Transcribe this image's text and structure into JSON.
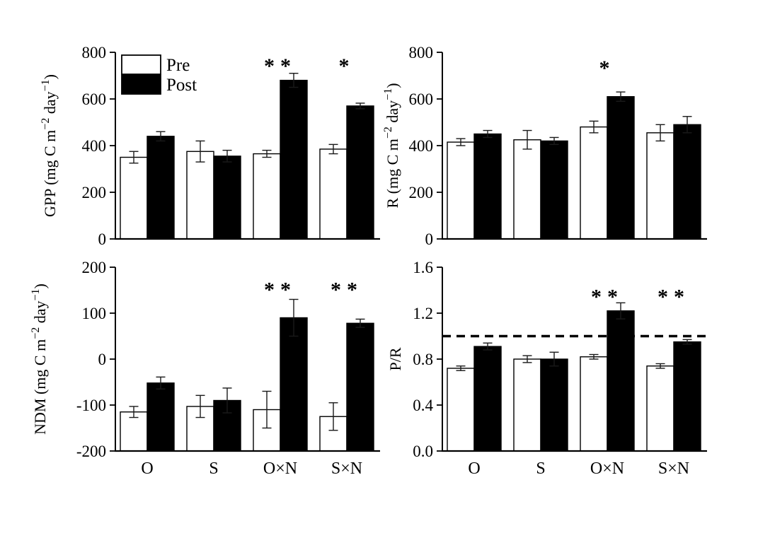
{
  "figure": {
    "background": "#ffffff",
    "bar_outline_color": "#000000",
    "pre_fill": "#ffffff",
    "post_fill": "#000000",
    "error_bar_color": "#1a1a1a",
    "refline_color": "#000000"
  },
  "legend": {
    "items": [
      {
        "label": "Pre",
        "fill": "#ffffff"
      },
      {
        "label": "Post",
        "fill": "#000000"
      }
    ]
  },
  "chart_data": [
    {
      "id": "gpp",
      "type": "bar",
      "title": "",
      "ylabel_text": "GPP (mg C m⁻² day⁻¹)",
      "ylabel_parts": [
        {
          "t": "GPP (mg C m"
        },
        {
          "t": "−2",
          "sup": true
        },
        {
          "t": " day"
        },
        {
          "t": "−1",
          "sup": true
        },
        {
          "t": ")"
        }
      ],
      "ylim": [
        0,
        800
      ],
      "yticks": [
        0,
        200,
        400,
        600,
        800
      ],
      "yticklabels": [
        "0",
        "200",
        "400",
        "600",
        "800"
      ],
      "categories": [
        "O",
        "S",
        "O×N",
        "S×N"
      ],
      "series": [
        {
          "name": "Pre",
          "fill": "#ffffff",
          "values": [
            350,
            375,
            365,
            385
          ],
          "errors": [
            25,
            45,
            15,
            20
          ]
        },
        {
          "name": "Post",
          "fill": "#000000",
          "values": [
            440,
            355,
            680,
            570
          ],
          "errors": [
            20,
            25,
            30,
            12
          ]
        }
      ],
      "significance": [
        "",
        "",
        "**",
        "*"
      ],
      "sig_y": 755,
      "refline": null,
      "show_legend": true,
      "show_xlabels": false,
      "grid": false
    },
    {
      "id": "r",
      "type": "bar",
      "title": "",
      "ylabel_text": "R (mg C m⁻² day⁻¹)",
      "ylabel_parts": [
        {
          "t": "R (mg C m"
        },
        {
          "t": "−2",
          "sup": true
        },
        {
          "t": " day"
        },
        {
          "t": "−1",
          "sup": true
        },
        {
          "t": ")"
        }
      ],
      "ylim": [
        0,
        800
      ],
      "yticks": [
        0,
        200,
        400,
        600,
        800
      ],
      "yticklabels": [
        "0",
        "200",
        "400",
        "600",
        "800"
      ],
      "categories": [
        "O",
        "S",
        "O×N",
        "S×N"
      ],
      "series": [
        {
          "name": "Pre",
          "fill": "#ffffff",
          "values": [
            415,
            425,
            480,
            455
          ],
          "errors": [
            15,
            40,
            25,
            35
          ]
        },
        {
          "name": "Post",
          "fill": "#000000",
          "values": [
            450,
            420,
            610,
            490
          ],
          "errors": [
            15,
            15,
            20,
            35
          ]
        }
      ],
      "significance": [
        "",
        "",
        "*",
        ""
      ],
      "sig_y": 745,
      "refline": null,
      "show_legend": false,
      "show_xlabels": false,
      "grid": false
    },
    {
      "id": "ndm",
      "type": "bar",
      "title": "",
      "ylabel_text": "NDM (mg C m⁻² day⁻¹)",
      "ylabel_parts": [
        {
          "t": "NDM (mg C m"
        },
        {
          "t": "−2",
          "sup": true
        },
        {
          "t": " day"
        },
        {
          "t": "−1",
          "sup": true
        },
        {
          "t": ")"
        }
      ],
      "ylim": [
        -200,
        200
      ],
      "yticks": [
        -200,
        -100,
        0,
        100,
        200
      ],
      "yticklabels": [
        "-200",
        "-100",
        "0",
        "100",
        "200"
      ],
      "categories": [
        "O",
        "S",
        "O×N",
        "S×N"
      ],
      "series": [
        {
          "name": "Pre",
          "fill": "#ffffff",
          "values": [
            -115,
            -103,
            -110,
            -125
          ],
          "errors": [
            12,
            24,
            40,
            30
          ]
        },
        {
          "name": "Post",
          "fill": "#000000",
          "values": [
            -52,
            -90,
            90,
            78
          ],
          "errors": [
            13,
            27,
            40,
            9
          ]
        }
      ],
      "significance": [
        "",
        "",
        "**",
        "**"
      ],
      "sig_y": 158,
      "refline": null,
      "show_legend": false,
      "show_xlabels": true,
      "grid": false
    },
    {
      "id": "pr",
      "type": "bar",
      "title": "",
      "ylabel_text": "P/R",
      "ylabel_parts": [
        {
          "t": "P/R"
        }
      ],
      "ylim": [
        0,
        1.6
      ],
      "yticks": [
        0,
        0.4,
        0.8,
        1.2,
        1.6
      ],
      "yticklabels": [
        "0.0",
        "0.4",
        "0.8",
        "1.2",
        "1.6"
      ],
      "categories": [
        "O",
        "S",
        "O×N",
        "S×N"
      ],
      "series": [
        {
          "name": "Pre",
          "fill": "#ffffff",
          "values": [
            0.72,
            0.8,
            0.82,
            0.74
          ],
          "errors": [
            0.02,
            0.03,
            0.02,
            0.02
          ]
        },
        {
          "name": "Post",
          "fill": "#000000",
          "values": [
            0.91,
            0.8,
            1.22,
            0.95
          ],
          "errors": [
            0.03,
            0.06,
            0.07,
            0.02
          ]
        }
      ],
      "significance": [
        "",
        "",
        "**",
        "**"
      ],
      "sig_y": 1.37,
      "refline": 1.0,
      "show_legend": false,
      "show_xlabels": true,
      "grid": false
    }
  ]
}
